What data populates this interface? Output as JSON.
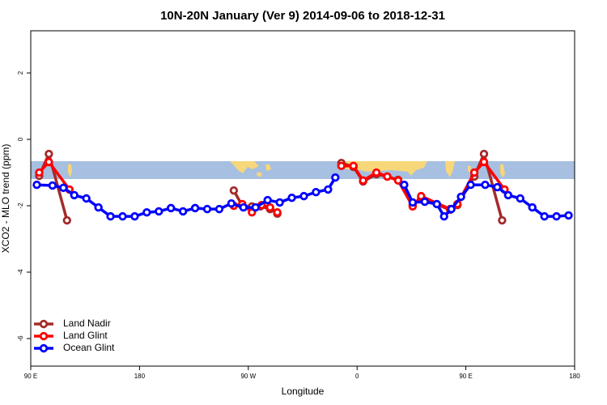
{
  "chart_data": {
    "type": "line",
    "title": "10N-20N January (Ver 9)   2014-09-06 to 2018-12-31",
    "x_label": "Longitude",
    "y_label": "XCO2 - MLO trend (ppm)",
    "xlim": [
      90,
      540
    ],
    "ylim": [
      -6.83,
      3.27
    ],
    "xticks": [
      {
        "value": 90,
        "label": "90 E"
      },
      180,
      {
        "value": 270,
        "label": "90 W"
      },
      {
        "value": 360,
        "label": "0"
      },
      {
        "value": 450,
        "label": "90 E"
      },
      {
        "value": 540,
        "label": "180"
      }
    ],
    "yticks": [
      2,
      0,
      -2,
      -4,
      -6
    ],
    "legend": "bottom-left",
    "series": [
      {
        "name": "Land Nadir",
        "color": "#a52a2a",
        "x": [
          97,
          105,
          120,
          null,
          258,
          265,
          273,
          280,
          288,
          294,
          null,
          347,
          357,
          365,
          376,
          385,
          394,
          406,
          413,
          437,
          443,
          457,
          465,
          480
        ],
        "values": [
          -1.1,
          -0.44,
          -2.44,
          null,
          -1.54,
          -2.0,
          -2.02,
          -2.02,
          -2.1,
          -2.24,
          null,
          -0.71,
          -0.83,
          -1.27,
          -1.05,
          -1.12,
          -1.22,
          -1.98,
          -1.78,
          -2.12,
          -1.98,
          -1.12,
          -0.44,
          -2.44
        ]
      },
      {
        "name": "Land Glint",
        "color": "#ff0000",
        "x": [
          97,
          105,
          122,
          null,
          258,
          265,
          273,
          281,
          288,
          294,
          null,
          347,
          357,
          365,
          376,
          385,
          394,
          406,
          413,
          437,
          443,
          457,
          465,
          482
        ],
        "values": [
          -1.0,
          -0.68,
          -1.51,
          null,
          -2.0,
          -1.95,
          -2.2,
          -1.98,
          -2.05,
          -2.2,
          null,
          -0.8,
          -0.8,
          -1.24,
          -1.0,
          -1.12,
          -1.24,
          -2.02,
          -1.71,
          -2.1,
          -1.95,
          -1.0,
          -0.68,
          -1.51
        ]
      },
      {
        "name": "Ocean Glint",
        "color": "#0000ff",
        "x": [
          95,
          108,
          117,
          126,
          136,
          146,
          156,
          166,
          176,
          186,
          196,
          206,
          216,
          226,
          236,
          246,
          256,
          266,
          276,
          286,
          296,
          306,
          316,
          326,
          336,
          342,
          null,
          399,
          406,
          416,
          426,
          432,
          438,
          446,
          454,
          466,
          476,
          485,
          495,
          505,
          515,
          525,
          535
        ],
        "values": [
          -1.37,
          -1.39,
          -1.46,
          -1.68,
          -1.78,
          -2.05,
          -2.32,
          -2.32,
          -2.32,
          -2.2,
          -2.17,
          -2.07,
          -2.17,
          -2.07,
          -2.1,
          -2.1,
          -1.93,
          -2.05,
          -2.05,
          -1.83,
          -1.9,
          -1.76,
          -1.71,
          -1.59,
          -1.51,
          -1.15,
          null,
          -1.37,
          -1.9,
          -1.88,
          -1.95,
          -2.32,
          -2.1,
          -1.73,
          -1.37,
          -1.37,
          -1.44,
          -1.68,
          -1.78,
          -2.05,
          -2.32,
          -2.32,
          -2.29
        ]
      }
    ]
  }
}
